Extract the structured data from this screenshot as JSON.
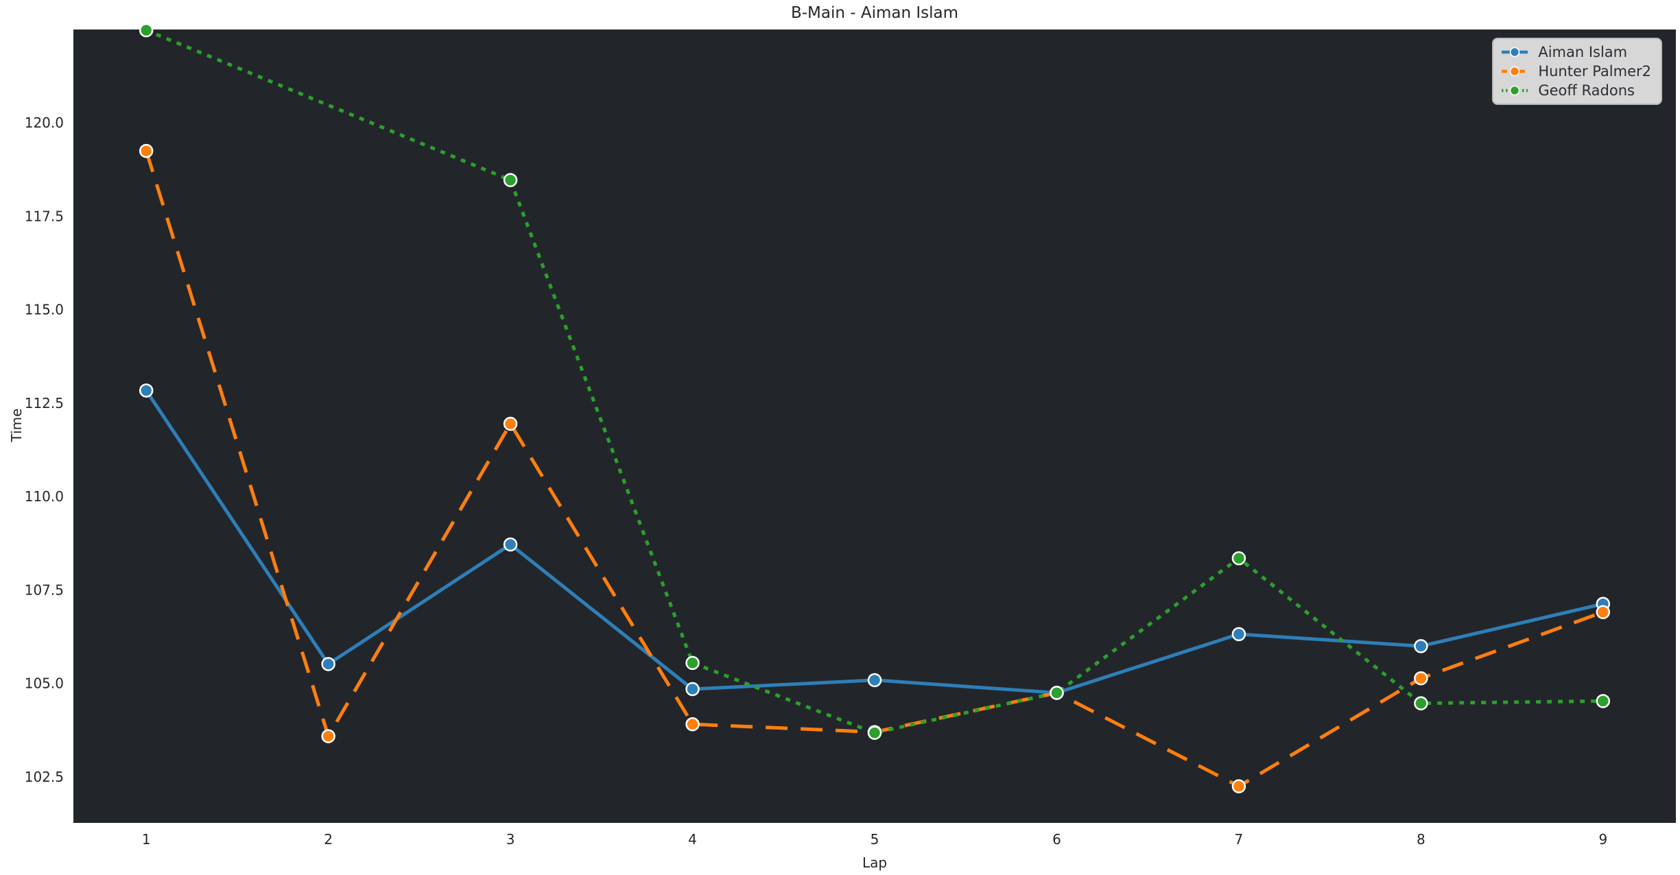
{
  "colors": {
    "axes_background": "#22262b",
    "figure_background": "#ffffff",
    "text": "#262626",
    "marker_edge": "#ffffff",
    "legend_background": "rgba(255,255,255,0.82)"
  },
  "chart_data": {
    "type": "line",
    "title": "B-Main - Aiman Islam",
    "xlabel": "Lap",
    "ylabel": "Time",
    "x_ticks": [
      1,
      2,
      3,
      4,
      5,
      6,
      7,
      8,
      9
    ],
    "y_ticks": [
      102.5,
      105.0,
      107.5,
      110.0,
      112.5,
      115.0,
      117.5,
      120.0
    ],
    "xlim": [
      0.6,
      9.4
    ],
    "ylim": [
      101.27,
      122.5
    ],
    "grid": false,
    "legend_position": "upper right",
    "series": [
      {
        "name": "Aiman Islam",
        "color": "#2e7fb8",
        "style": "solid",
        "marker": "circle",
        "x": [
          1,
          2,
          3,
          4,
          5,
          6,
          7,
          8,
          9
        ],
        "y": [
          112.84,
          105.52,
          108.72,
          104.85,
          105.09,
          104.75,
          106.32,
          106.0,
          107.13
        ]
      },
      {
        "name": "Hunter Palmer2",
        "color": "#ff7f0e",
        "style": "dashed",
        "marker": "circle",
        "x": [
          1,
          2,
          3,
          4,
          5,
          6,
          7,
          8,
          9
        ],
        "y": [
          119.25,
          103.59,
          111.95,
          103.91,
          103.7,
          104.75,
          102.25,
          105.14,
          106.91
        ]
      },
      {
        "name": "Geoff Radons",
        "color": "#2ca02c",
        "style": "dotted",
        "marker": "circle",
        "x": [
          1,
          3,
          4,
          5,
          6,
          7,
          8,
          9
        ],
        "y": [
          122.48,
          118.47,
          105.55,
          103.68,
          104.75,
          108.35,
          104.47,
          104.53
        ]
      }
    ]
  }
}
